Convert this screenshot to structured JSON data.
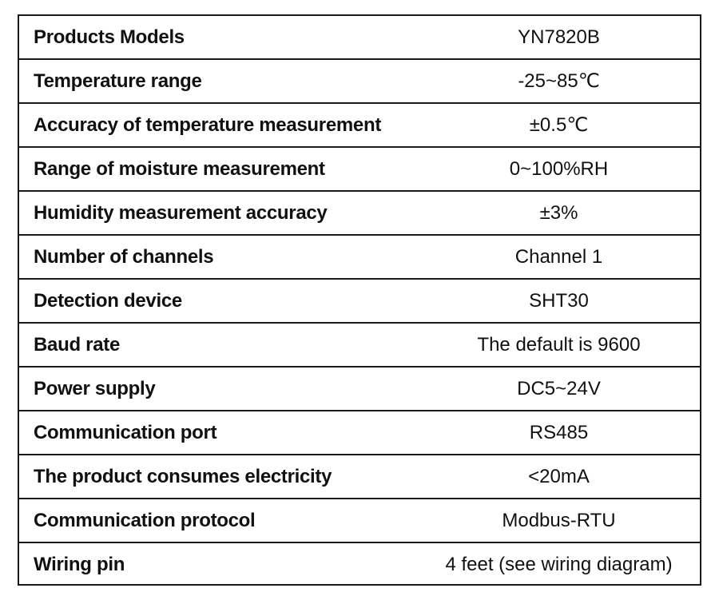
{
  "spec_table": {
    "rows": [
      {
        "label": "Products Models",
        "value": "YN7820B"
      },
      {
        "label": "Temperature range",
        "value": "-25~85℃"
      },
      {
        "label": "Accuracy of temperature measurement",
        "value": "±0.5℃"
      },
      {
        "label": "Range of moisture measurement",
        "value": "0~100%RH"
      },
      {
        "label": "Humidity measurement accuracy",
        "value": "±3%"
      },
      {
        "label": "Number of channels",
        "value": "Channel 1"
      },
      {
        "label": "Detection device",
        "value": "SHT30"
      },
      {
        "label": "Baud rate",
        "value": "The default is 9600"
      },
      {
        "label": "Power supply",
        "value": "DC5~24V"
      },
      {
        "label": "Communication port",
        "value": "RS485"
      },
      {
        "label": "The product consumes electricity",
        "value": "<20mA"
      },
      {
        "label": "Communication protocol",
        "value": "Modbus-RTU"
      },
      {
        "label": "Wiring pin",
        "value": "4 feet (see wiring diagram)"
      }
    ]
  }
}
